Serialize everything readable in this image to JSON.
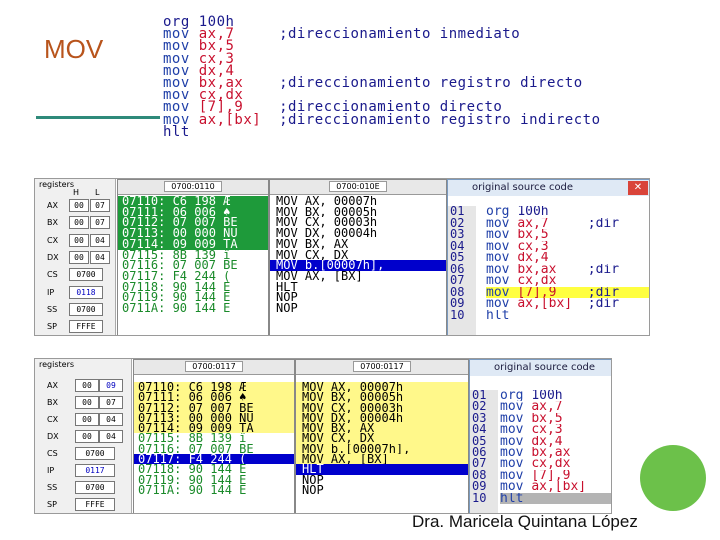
{
  "slide_title": "MOV",
  "author": "Dra. Maricela Quintana López",
  "colors": {
    "title": "#b8541c",
    "accent_rule": "#2f8a7a",
    "highlight_green": "#1e9a3a",
    "highlight_yellow": "#fff88a",
    "selection_blue": "#0000cc",
    "circle": "#6cc14a"
  },
  "code": [
    {
      "ins": "org",
      "arg": "100h",
      "cmt": ""
    },
    {
      "ins": "mov",
      "arg": "ax,7",
      "cmt": ";direccionamiento inmediato"
    },
    {
      "ins": "mov",
      "arg": "bx,5",
      "cmt": ""
    },
    {
      "ins": "mov",
      "arg": "cx,3",
      "cmt": ""
    },
    {
      "ins": "mov",
      "arg": "dx,4",
      "cmt": ""
    },
    {
      "ins": "mov",
      "arg": "bx,ax",
      "cmt": ";direccionamiento registro directo"
    },
    {
      "ins": "mov",
      "arg": "cx,dx",
      "cmt": ""
    },
    {
      "ins": "mov",
      "arg": "[7],9",
      "cmt": ";direccionamiento directo"
    },
    {
      "ins": "mov",
      "arg": "ax,[bx]",
      "cmt": ";direccionamiento registro indirecto"
    },
    {
      "ins": "hlt",
      "arg": "",
      "cmt": ""
    }
  ],
  "emu1": {
    "registers_label": "registers",
    "hl_header": {
      "h": "H",
      "l": "L"
    },
    "regs": [
      {
        "name": "AX",
        "h": "00",
        "l": "07"
      },
      {
        "name": "BX",
        "h": "00",
        "l": "07"
      },
      {
        "name": "CX",
        "h": "00",
        "l": "04"
      },
      {
        "name": "DX",
        "h": "00",
        "l": "04"
      },
      {
        "name": "CS",
        "v": "0700"
      },
      {
        "name": "IP",
        "v": "0118"
      },
      {
        "name": "SS",
        "v": "0700"
      },
      {
        "name": "SP",
        "v": "FFFE"
      }
    ],
    "mem_header": "0700:0110",
    "mem": [
      [
        "07110:",
        "C6",
        "198",
        "Æ"
      ],
      [
        "07111:",
        "06",
        "006",
        "♠"
      ],
      [
        "07112:",
        "07",
        "007",
        "BE"
      ],
      [
        "07113:",
        "00",
        "000",
        "NU"
      ],
      [
        "07114:",
        "09",
        "009",
        "TA"
      ],
      [
        "07115:",
        "8B",
        "139",
        "ï"
      ],
      [
        "07116:",
        "07",
        "007",
        "BE"
      ],
      [
        "07117:",
        "F4",
        "244",
        "("
      ],
      [
        "07118:",
        "90",
        "144",
        "É"
      ],
      [
        "07119:",
        "90",
        "144",
        "É"
      ],
      [
        "0711A:",
        "90",
        "144",
        "É"
      ]
    ],
    "dis_header": "0700:010E",
    "dis": [
      "MOV AX, 00007h",
      "MOV BX, 00005h",
      "MOV CX, 00003h",
      "MOV DX, 00004h",
      "MOV BX, AX",
      "MOV CX, DX",
      "MOV b.[00007h],",
      "MOV AX, [BX]",
      "HLT",
      "NOP",
      "NOP"
    ],
    "src_title": "original source code",
    "src_nums": [
      "01",
      "02",
      "03",
      "04",
      "05",
      "06",
      "07",
      "08",
      "09",
      "10"
    ],
    "src": [
      [
        "org",
        "100h",
        ""
      ],
      [
        "mov",
        "ax,7",
        ";dir"
      ],
      [
        "mov",
        "bx,5",
        ""
      ],
      [
        "mov",
        "cx,3",
        ""
      ],
      [
        "mov",
        "dx,4",
        ""
      ],
      [
        "mov",
        "bx,ax",
        ";dir"
      ],
      [
        "mov",
        "cx,dx",
        ""
      ],
      [
        "mov",
        "[7],9",
        ";dir"
      ],
      [
        "mov",
        "ax,[bx]",
        ";dir"
      ],
      [
        "hlt",
        "",
        ""
      ]
    ]
  },
  "emu2": {
    "registers_label": "registers",
    "regs": [
      {
        "name": "AX",
        "h": "00",
        "l": "09"
      },
      {
        "name": "BX",
        "h": "00",
        "l": "07"
      },
      {
        "name": "CX",
        "h": "00",
        "l": "04"
      },
      {
        "name": "DX",
        "h": "00",
        "l": "04"
      },
      {
        "name": "CS",
        "v": "0700"
      },
      {
        "name": "IP",
        "v": "0117"
      },
      {
        "name": "SS",
        "v": "0700"
      },
      {
        "name": "SP",
        "v": "FFFE"
      }
    ],
    "mem_header": "0700:0117",
    "mem": [
      [
        "07110:",
        "C6",
        "198",
        "Æ"
      ],
      [
        "07111:",
        "06",
        "006",
        "♠"
      ],
      [
        "07112:",
        "07",
        "007",
        "BE"
      ],
      [
        "07113:",
        "00",
        "000",
        "NU"
      ],
      [
        "07114:",
        "09",
        "009",
        "TA"
      ],
      [
        "07115:",
        "8B",
        "139",
        "ï"
      ],
      [
        "07116:",
        "07",
        "007",
        "BE"
      ],
      [
        "07117:",
        "F4",
        "244",
        "("
      ],
      [
        "07118:",
        "90",
        "144",
        "É"
      ],
      [
        "07119:",
        "90",
        "144",
        "É"
      ],
      [
        "0711A:",
        "90",
        "144",
        "É"
      ]
    ],
    "dis_header": "0700:0117",
    "dis": [
      "MOV AX, 00007h",
      "MOV BX, 00005h",
      "MOV CX, 00003h",
      "MOV DX, 00004h",
      "MOV BX, AX",
      "MOV CX, DX",
      "MOV b.[00007h],",
      "MOV AX, [BX]",
      "HLT",
      "NOP",
      "NOP"
    ],
    "src_title": "original source code",
    "src_nums": [
      "01",
      "02",
      "03",
      "04",
      "05",
      "06",
      "07",
      "08",
      "09",
      "10"
    ],
    "src": [
      [
        "org",
        "100h"
      ],
      [
        "mov",
        "ax,7"
      ],
      [
        "mov",
        "bx,5"
      ],
      [
        "mov",
        "cx,3"
      ],
      [
        "mov",
        "dx,4"
      ],
      [
        "mov",
        "bx,ax"
      ],
      [
        "mov",
        "cx,dx"
      ],
      [
        "mov",
        "[7],9"
      ],
      [
        "mov",
        "ax,[bx]"
      ],
      [
        "hlt",
        ""
      ]
    ]
  }
}
